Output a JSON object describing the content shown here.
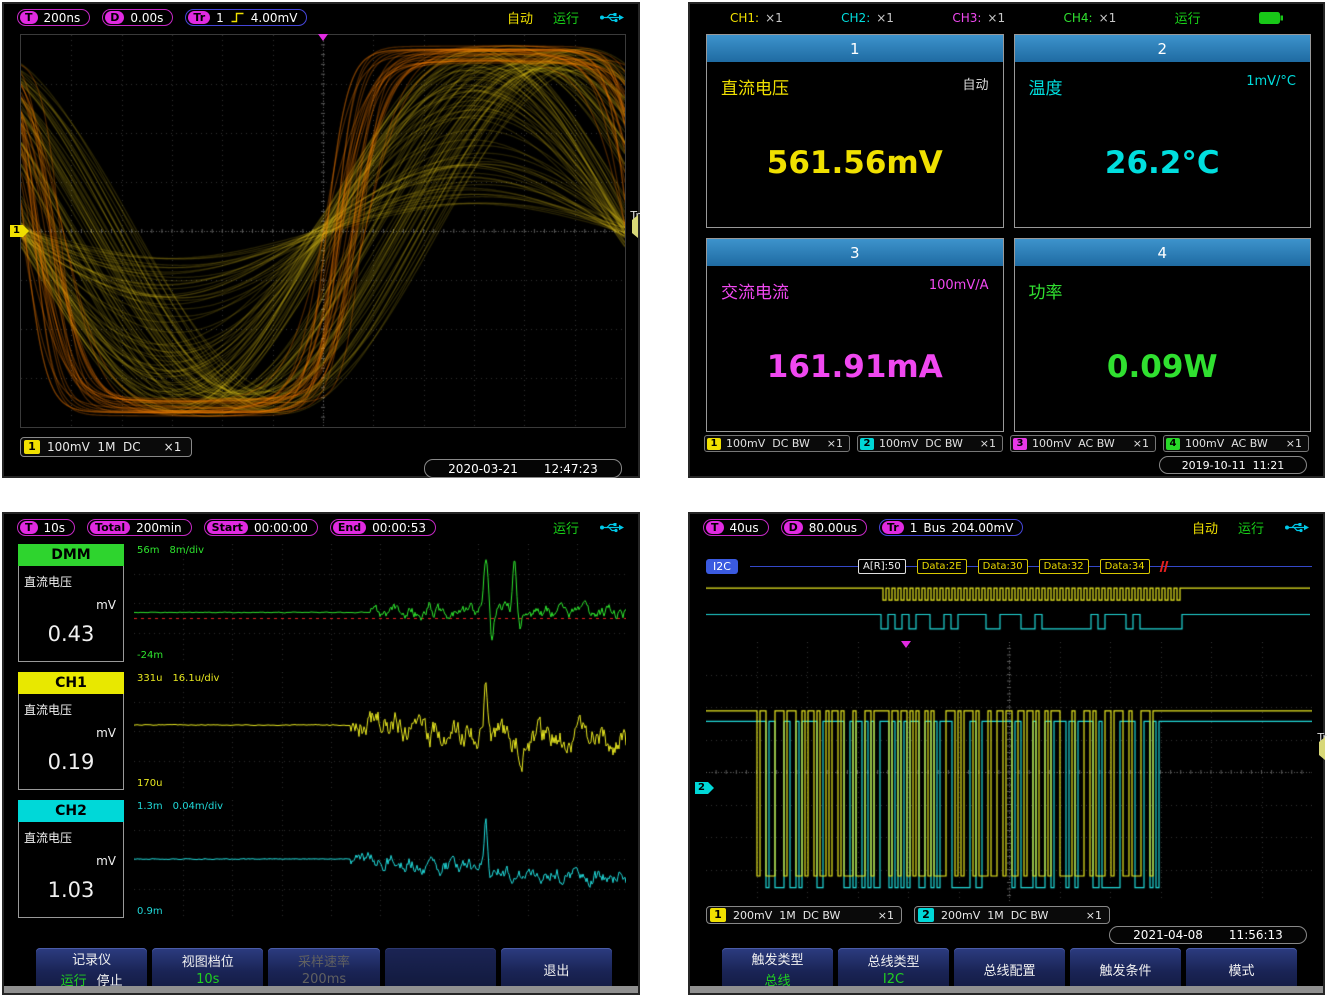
{
  "colors": {
    "ch1_yellow": "#f0e000",
    "ch2_cyan": "#00d8d8",
    "ch3_magenta": "#e838e8",
    "ch4_green": "#28d828",
    "persistence_orange": "#ff8000",
    "header_blue": "#2e80b8",
    "menu_navy": "#1a2456",
    "accent_magenta": "#e02ae0",
    "decode_blue": "#3a5ae0"
  },
  "scope": {
    "topbar": {
      "t_badge": "T",
      "t_value": "200ns",
      "d_badge": "D",
      "d_value": "0.00s",
      "tr_badge": "Tr",
      "tr_source": "1",
      "tr_level": "4.00mV",
      "acquire": "自动",
      "run": "运行"
    },
    "ch_marker": "1",
    "tr_marker": "Tr",
    "channel": {
      "num": "1",
      "info": "100mV  1M  DC",
      "probe": "×1"
    },
    "date": "2020-03-21",
    "time": "12:47:23"
  },
  "meter": {
    "topbar": {
      "ch1": "CH1:",
      "ch1_mult": "×1",
      "ch2": "CH2:",
      "ch2_mult": "×1",
      "ch3": "CH3:",
      "ch3_mult": "×1",
      "ch4": "CH4:",
      "ch4_mult": "×1",
      "run": "运行"
    },
    "cards": [
      {
        "num": "1",
        "name": "直流电压",
        "mode": "自动",
        "value": "561.56mV"
      },
      {
        "num": "2",
        "name": "温度",
        "mode": "1mV/°C",
        "value": "26.2°C"
      },
      {
        "num": "3",
        "name": "交流电流",
        "mode": "100mV/A",
        "value": "161.91mA"
      },
      {
        "num": "4",
        "name": "功率",
        "mode": "",
        "value": "0.09W"
      }
    ],
    "channels": [
      {
        "num": "1",
        "info": "100mV  DC BW",
        "probe": "×1"
      },
      {
        "num": "2",
        "info": "100mV  DC BW",
        "probe": "×1"
      },
      {
        "num": "3",
        "info": "100mV  AC BW",
        "probe": "×1"
      },
      {
        "num": "4",
        "info": "100mV  AC BW",
        "probe": "×1"
      }
    ],
    "datetime": "2019-10-11  11:21"
  },
  "recorder": {
    "topbar": {
      "t_badge": "T",
      "t_value": "10s",
      "total_badge": "Total",
      "total_value": "200min",
      "start_badge": "Start",
      "start_value": "00:00:00",
      "end_badge": "End",
      "end_value": "00:00:53",
      "run": "运行"
    },
    "signals": [
      {
        "name": "DMM",
        "type": "直流电压",
        "unit": "mV",
        "value": "0.43",
        "scale_top": "56m",
        "scale_div": "8m/div",
        "scale_bottom": "-24m"
      },
      {
        "name": "CH1",
        "type": "直流电压",
        "unit": "mV",
        "value": "0.19",
        "scale_top": "331u",
        "scale_div": "16.1u/div",
        "scale_bottom": "170u"
      },
      {
        "name": "CH2",
        "type": "直流电压",
        "unit": "mV",
        "value": "1.03",
        "scale_top": "1.3m",
        "scale_div": "0.04m/div",
        "scale_bottom": "0.9m"
      }
    ],
    "menu": [
      {
        "title": "记录仪",
        "sub_a": "运行",
        "sub_b": "停止"
      },
      {
        "title": "视图档位",
        "sub_a": "10s",
        "sub_b": ""
      },
      {
        "title": "采样速率",
        "sub_a": "200ms",
        "sub_b": ""
      },
      {
        "title": "",
        "sub_a": "",
        "sub_b": ""
      },
      {
        "title": "退出",
        "sub_a": "",
        "sub_b": ""
      }
    ]
  },
  "bus": {
    "topbar": {
      "t_badge": "T",
      "t_value": "40us",
      "d_badge": "D",
      "d_value": "80.00us",
      "tr_badge": "Tr",
      "tr_source": "1",
      "tr_type": "Bus",
      "tr_level": "204.00mV",
      "acquire": "自动",
      "run": "运行"
    },
    "protocol": "I2C",
    "decode": [
      {
        "text": "A[R]:50"
      },
      {
        "text": "Data:2E"
      },
      {
        "text": "Data:30"
      },
      {
        "text": "Data:32"
      },
      {
        "text": "Data:34"
      }
    ],
    "ch_marker": "2",
    "tr_marker": "Tr",
    "channels": [
      {
        "num": "1",
        "info": "200mV  1M  DC BW",
        "probe": "×1"
      },
      {
        "num": "2",
        "info": "200mV  1M  DC BW",
        "probe": "×1"
      }
    ],
    "date": "2021-04-08",
    "time": "11:56:13",
    "menu": [
      {
        "title": "触发类型",
        "sub_a": "总线"
      },
      {
        "title": "总线类型",
        "sub_a": "I2C"
      },
      {
        "title": "总线配置",
        "sub_a": ""
      },
      {
        "title": "触发条件",
        "sub_a": ""
      },
      {
        "title": "模式",
        "sub_a": ""
      }
    ]
  }
}
